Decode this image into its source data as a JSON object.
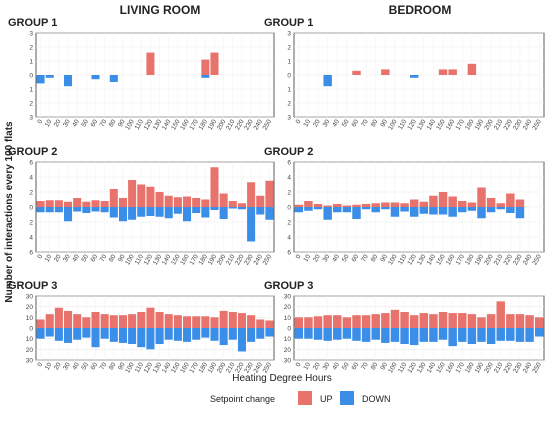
{
  "chart_data": {
    "type": "bar",
    "columns": [
      "LIVING ROOM",
      "BEDROOM"
    ],
    "xlabel": "Heating Degree Hours",
    "ylabel": "Number of interactions every 100 flats",
    "x_ticks": [
      "0",
      "10",
      "20",
      "30",
      "40",
      "50",
      "60",
      "70",
      "80",
      "90",
      "100",
      "110",
      "120",
      "130",
      "140",
      "150",
      "160",
      "170",
      "180",
      "190",
      "200",
      "210",
      "220",
      "230",
      "240",
      "250"
    ],
    "legend": {
      "title": "Setpoint change",
      "placement": "bottom",
      "entries": [
        {
          "name": "UP",
          "color": "#e8736c"
        },
        {
          "name": "DOWN",
          "color": "#3a8ee8"
        }
      ]
    },
    "panels": [
      {
        "title": "GROUP 1",
        "column": "LIVING ROOM",
        "ylim": [
          -3,
          3
        ],
        "y_ticks": [
          "3",
          "2",
          "1",
          "0",
          "1",
          "2",
          "3"
        ],
        "up": [
          0,
          0,
          0,
          0,
          0,
          0,
          0,
          0,
          0,
          0,
          0,
          0,
          1.6,
          0,
          0,
          0,
          0,
          0,
          1.1,
          1.6,
          0,
          0,
          0,
          0,
          0,
          0
        ],
        "down": [
          0.6,
          0.2,
          0,
          0.8,
          0,
          0,
          0.3,
          0,
          0.5,
          0,
          0,
          0,
          0,
          0,
          0,
          0,
          0,
          0,
          0.2,
          0,
          0,
          0,
          0,
          0,
          0,
          0
        ]
      },
      {
        "title": "GROUP 1",
        "column": "BEDROOM",
        "ylim": [
          -3,
          3
        ],
        "y_ticks": [
          "3",
          "2",
          "1",
          "0",
          "1",
          "2",
          "3"
        ],
        "up": [
          0,
          0,
          0,
          0,
          0,
          0,
          0.3,
          0,
          0,
          0.4,
          0,
          0,
          0,
          0,
          0,
          0.4,
          0.4,
          0,
          0.8,
          0,
          0,
          0,
          0,
          0,
          0,
          0
        ],
        "down": [
          0,
          0,
          0,
          0.8,
          0,
          0,
          0,
          0,
          0,
          0,
          0,
          0,
          0.2,
          0,
          0,
          0,
          0,
          0,
          0,
          0,
          0,
          0,
          0,
          0,
          0,
          0
        ]
      },
      {
        "title": "GROUP 2",
        "column": "LIVING ROOM",
        "ylim": [
          -6,
          6
        ],
        "y_ticks": [
          "6",
          "4",
          "2",
          "0",
          "2",
          "4",
          "6"
        ],
        "up": [
          0.8,
          0.9,
          0.9,
          0.7,
          1.2,
          0.7,
          0.9,
          0.8,
          2.4,
          1.2,
          3.6,
          3.0,
          2.7,
          2.0,
          1.5,
          1.3,
          1.4,
          1.2,
          1.0,
          5.3,
          1.8,
          0.8,
          0.5,
          3.3,
          1.5,
          3.5
        ],
        "down": [
          0.7,
          0.7,
          0.7,
          1.9,
          0.6,
          0.8,
          0.6,
          0.7,
          1.4,
          1.9,
          1.7,
          1.3,
          1.2,
          1.3,
          1.5,
          0.9,
          1.9,
          0.8,
          1.4,
          0.4,
          1.6,
          0.2,
          0.3,
          4.6,
          1.0,
          1.7
        ]
      },
      {
        "title": "GROUP 2",
        "column": "BEDROOM",
        "ylim": [
          -6,
          6
        ],
        "y_ticks": [
          "6",
          "4",
          "2",
          "0",
          "2",
          "4",
          "6"
        ],
        "up": [
          0.3,
          0.8,
          0.4,
          0.2,
          0.4,
          0.2,
          0.3,
          0.4,
          0.5,
          0.6,
          0.6,
          0.5,
          1.0,
          0.7,
          1.5,
          2.0,
          1.4,
          0.8,
          0.6,
          2.6,
          1.2,
          0.5,
          1.8,
          1.0,
          0,
          0
        ],
        "down": [
          0.7,
          0.5,
          0.3,
          1.7,
          0.7,
          0.7,
          1.6,
          0.3,
          0.7,
          0.3,
          1.3,
          0.6,
          1.3,
          0.9,
          1.0,
          1.0,
          1.3,
          0.7,
          0.5,
          1.5,
          0.7,
          0.3,
          0.8,
          1.5,
          0,
          0
        ]
      },
      {
        "title": "GROUP 3",
        "column": "LIVING ROOM",
        "ylim": [
          -30,
          30
        ],
        "y_ticks": [
          "30",
          "20",
          "10",
          "0",
          "10",
          "20",
          "30"
        ],
        "up": [
          8,
          13,
          19,
          16,
          13,
          10,
          15,
          13,
          12,
          12,
          13,
          15,
          19,
          15,
          13,
          12,
          11,
          11,
          11,
          10,
          16,
          15,
          14,
          12,
          8,
          7
        ],
        "down": [
          10,
          8,
          12,
          14,
          11,
          9,
          18,
          10,
          13,
          14,
          15,
          18,
          20,
          15,
          11,
          12,
          13,
          11,
          9,
          12,
          16,
          11,
          22,
          13,
          10,
          8
        ]
      },
      {
        "title": "GROUP 3",
        "column": "BEDROOM",
        "ylim": [
          -30,
          30
        ],
        "y_ticks": [
          "30",
          "20",
          "10",
          "0",
          "10",
          "20",
          "30"
        ],
        "up": [
          10,
          10,
          11,
          12,
          12,
          10,
          12,
          12,
          13,
          14,
          17,
          15,
          12,
          14,
          13,
          15,
          14,
          14,
          13,
          10,
          13,
          25,
          13,
          13,
          12,
          10
        ],
        "down": [
          10,
          10,
          11,
          12,
          11,
          10,
          12,
          13,
          11,
          14,
          13,
          15,
          16,
          13,
          13,
          11,
          17,
          13,
          15,
          13,
          15,
          12,
          12,
          13,
          13,
          8
        ]
      }
    ]
  }
}
